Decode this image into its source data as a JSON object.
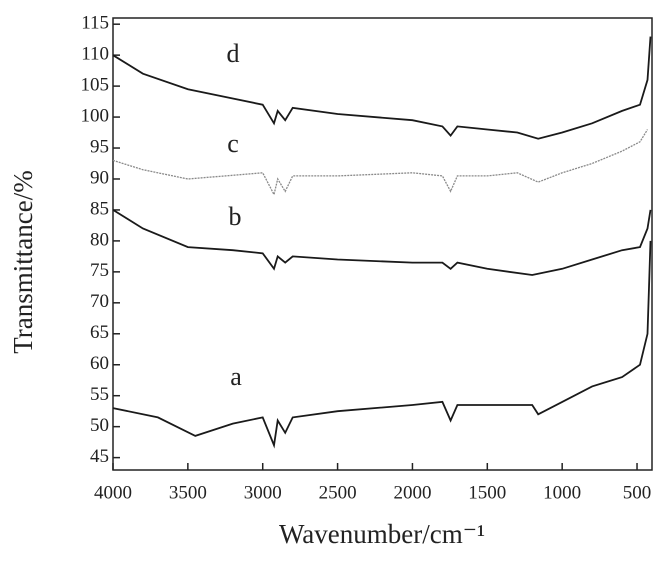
{
  "chart_data": {
    "type": "line",
    "xlabel": "Wavenumber/cm⁻¹",
    "ylabel": "Transmittance/%",
    "xlim": [
      4000,
      400
    ],
    "ylim": [
      43,
      116
    ],
    "xticks": [
      4000,
      3500,
      3000,
      2500,
      2000,
      1500,
      1000,
      500
    ],
    "yticks": [
      45,
      50,
      55,
      60,
      65,
      70,
      75,
      80,
      85,
      90,
      95,
      100,
      105,
      110,
      115
    ],
    "series": [
      {
        "name": "d",
        "color": "#1a1a1a",
        "x": [
          4000,
          3800,
          3500,
          3200,
          3000,
          2925,
          2900,
          2850,
          2800,
          2500,
          2000,
          1800,
          1745,
          1700,
          1500,
          1300,
          1160,
          1000,
          800,
          600,
          480,
          430,
          410
        ],
        "values": [
          110,
          107,
          104.5,
          103,
          102,
          99,
          101,
          99.5,
          101.5,
          100.5,
          99.5,
          98.5,
          97,
          98.5,
          98,
          97.5,
          96.5,
          97.5,
          99,
          101,
          102,
          106,
          113
        ]
      },
      {
        "name": "c",
        "color": "#8a8a8a",
        "x": [
          4000,
          3800,
          3500,
          3000,
          2925,
          2900,
          2850,
          2800,
          2500,
          2000,
          1800,
          1745,
          1700,
          1500,
          1300,
          1160,
          1000,
          800,
          600,
          480,
          430
        ],
        "values": [
          93,
          91.5,
          90,
          91,
          87.5,
          90,
          88,
          90.5,
          90.5,
          91,
          90.5,
          88,
          90.5,
          90.5,
          91,
          89.5,
          91,
          92.5,
          94.5,
          96,
          98
        ]
      },
      {
        "name": "b",
        "color": "#1a1a1a",
        "x": [
          4000,
          3800,
          3500,
          3200,
          3000,
          2925,
          2900,
          2850,
          2800,
          2500,
          2000,
          1800,
          1745,
          1700,
          1500,
          1200,
          1000,
          800,
          600,
          480,
          430,
          410
        ],
        "values": [
          85,
          82,
          79,
          78.5,
          78,
          75.5,
          77.5,
          76.5,
          77.5,
          77,
          76.5,
          76.5,
          75.5,
          76.5,
          75.5,
          74.5,
          75.5,
          77,
          78.5,
          79,
          82,
          85
        ]
      },
      {
        "name": "a",
        "color": "#1a1a1a",
        "x": [
          4000,
          3700,
          3450,
          3200,
          3000,
          2925,
          2900,
          2850,
          2800,
          2500,
          2000,
          1800,
          1745,
          1700,
          1500,
          1200,
          1160,
          1000,
          800,
          600,
          480,
          430,
          410
        ],
        "values": [
          53,
          51.5,
          48.5,
          50.5,
          51.5,
          47,
          51,
          49,
          51.5,
          52.5,
          53.5,
          54,
          51,
          53.5,
          53.5,
          53.5,
          52,
          54,
          56.5,
          58,
          60,
          65,
          80
        ]
      }
    ]
  }
}
